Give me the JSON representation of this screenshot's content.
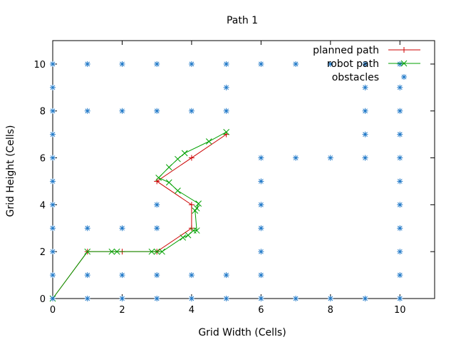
{
  "chart_data": {
    "type": "line",
    "title": "Path 1",
    "xlabel": "Grid Width (Cells)",
    "ylabel": "Grid Height (Cells)",
    "xlim": [
      0,
      11
    ],
    "ylim": [
      0,
      11
    ],
    "xticks": [
      0,
      2,
      4,
      6,
      8,
      10
    ],
    "yticks": [
      0,
      2,
      4,
      6,
      8,
      10
    ],
    "grid": false,
    "legend_position": "top-right",
    "series": [
      {
        "name": "planned path",
        "color": "#cc0000",
        "marker": "plus",
        "points": [
          [
            0,
            0
          ],
          [
            1,
            2
          ],
          [
            2,
            2
          ],
          [
            3,
            2
          ],
          [
            4,
            3
          ],
          [
            4,
            4
          ],
          [
            3,
            5
          ],
          [
            4,
            6
          ],
          [
            5,
            7
          ]
        ]
      },
      {
        "name": "robot path",
        "color": "#00a000",
        "marker": "cross",
        "points": [
          [
            0,
            0
          ],
          [
            1,
            2
          ],
          [
            1.7,
            2
          ],
          [
            1.85,
            2
          ],
          [
            2.85,
            2
          ],
          [
            3.0,
            2
          ],
          [
            3.15,
            2
          ],
          [
            3.75,
            2.6
          ],
          [
            3.9,
            2.7
          ],
          [
            4.05,
            2.9
          ],
          [
            4.15,
            2.9
          ],
          [
            4.1,
            3.75
          ],
          [
            4.15,
            3.85
          ],
          [
            4.2,
            4.05
          ],
          [
            3.6,
            4.6
          ],
          [
            3.35,
            4.95
          ],
          [
            3.05,
            5.15
          ],
          [
            3.35,
            5.6
          ],
          [
            3.6,
            5.95
          ],
          [
            3.8,
            6.2
          ],
          [
            4.5,
            6.7
          ],
          [
            5,
            7.1
          ]
        ]
      },
      {
        "name": "obstacles",
        "color": "#1f78c8",
        "marker": "star",
        "points": [
          [
            0,
            0
          ],
          [
            1,
            0
          ],
          [
            2,
            0
          ],
          [
            3,
            0
          ],
          [
            4,
            0
          ],
          [
            5,
            0
          ],
          [
            6,
            0
          ],
          [
            7,
            0
          ],
          [
            8,
            0
          ],
          [
            9,
            0
          ],
          [
            10,
            0
          ],
          [
            0,
            1
          ],
          [
            1,
            1
          ],
          [
            2,
            1
          ],
          [
            3,
            1
          ],
          [
            4,
            1
          ],
          [
            5,
            1
          ],
          [
            6,
            1
          ],
          [
            10,
            1
          ],
          [
            0,
            2
          ],
          [
            6,
            2
          ],
          [
            10,
            2
          ],
          [
            0,
            3
          ],
          [
            1,
            3
          ],
          [
            2,
            3
          ],
          [
            3,
            3
          ],
          [
            6,
            3
          ],
          [
            10,
            3
          ],
          [
            0,
            4
          ],
          [
            3,
            4
          ],
          [
            6,
            4
          ],
          [
            10,
            4
          ],
          [
            0,
            5
          ],
          [
            6,
            5
          ],
          [
            10,
            5
          ],
          [
            0,
            6
          ],
          [
            6,
            6
          ],
          [
            7,
            6
          ],
          [
            8,
            6
          ],
          [
            9,
            6
          ],
          [
            10,
            6
          ],
          [
            0,
            7
          ],
          [
            9,
            7
          ],
          [
            10,
            7
          ],
          [
            0,
            8
          ],
          [
            1,
            8
          ],
          [
            2,
            8
          ],
          [
            3,
            8
          ],
          [
            4,
            8
          ],
          [
            5,
            8
          ],
          [
            9,
            8
          ],
          [
            10,
            8
          ],
          [
            0,
            9
          ],
          [
            5,
            9
          ],
          [
            9,
            9
          ],
          [
            10,
            9
          ],
          [
            0,
            10
          ],
          [
            1,
            10
          ],
          [
            2,
            10
          ],
          [
            3,
            10
          ],
          [
            4,
            10
          ],
          [
            5,
            10
          ],
          [
            6,
            10
          ],
          [
            7,
            10
          ],
          [
            8,
            10
          ],
          [
            9,
            10
          ],
          [
            10,
            10
          ]
        ]
      }
    ]
  }
}
